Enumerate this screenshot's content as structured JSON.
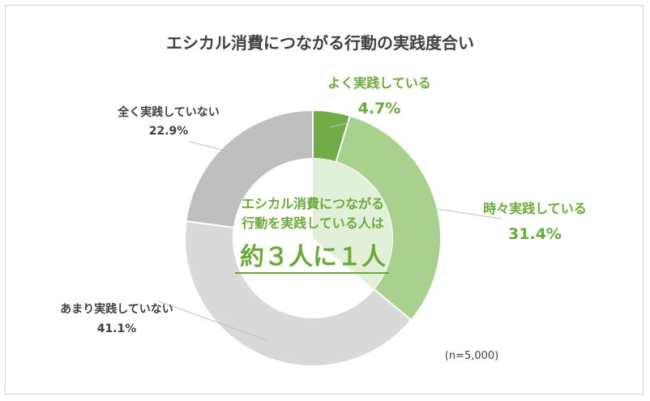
{
  "chart_data": {
    "type": "pie",
    "title": "エシカル消費につながる行動の実践度合い",
    "categories": [
      "よく実践している",
      "時々実践している",
      "あまり実践していない",
      "全く実践していない"
    ],
    "values": [
      4.7,
      31.4,
      41.1,
      22.9
    ],
    "value_labels": [
      "4.7%",
      "31.4%",
      "41.1%",
      "22.9%"
    ],
    "colors": [
      "#70ad47",
      "#a9d18e",
      "#d9d9d9",
      "#bfbfbf"
    ],
    "donut": true,
    "legend": "none",
    "center_text": {
      "line1": "エシカル消費につながる",
      "line2": "行動を実践している人は",
      "line3": "約３人に１人"
    },
    "note": "(n=5,000)"
  }
}
